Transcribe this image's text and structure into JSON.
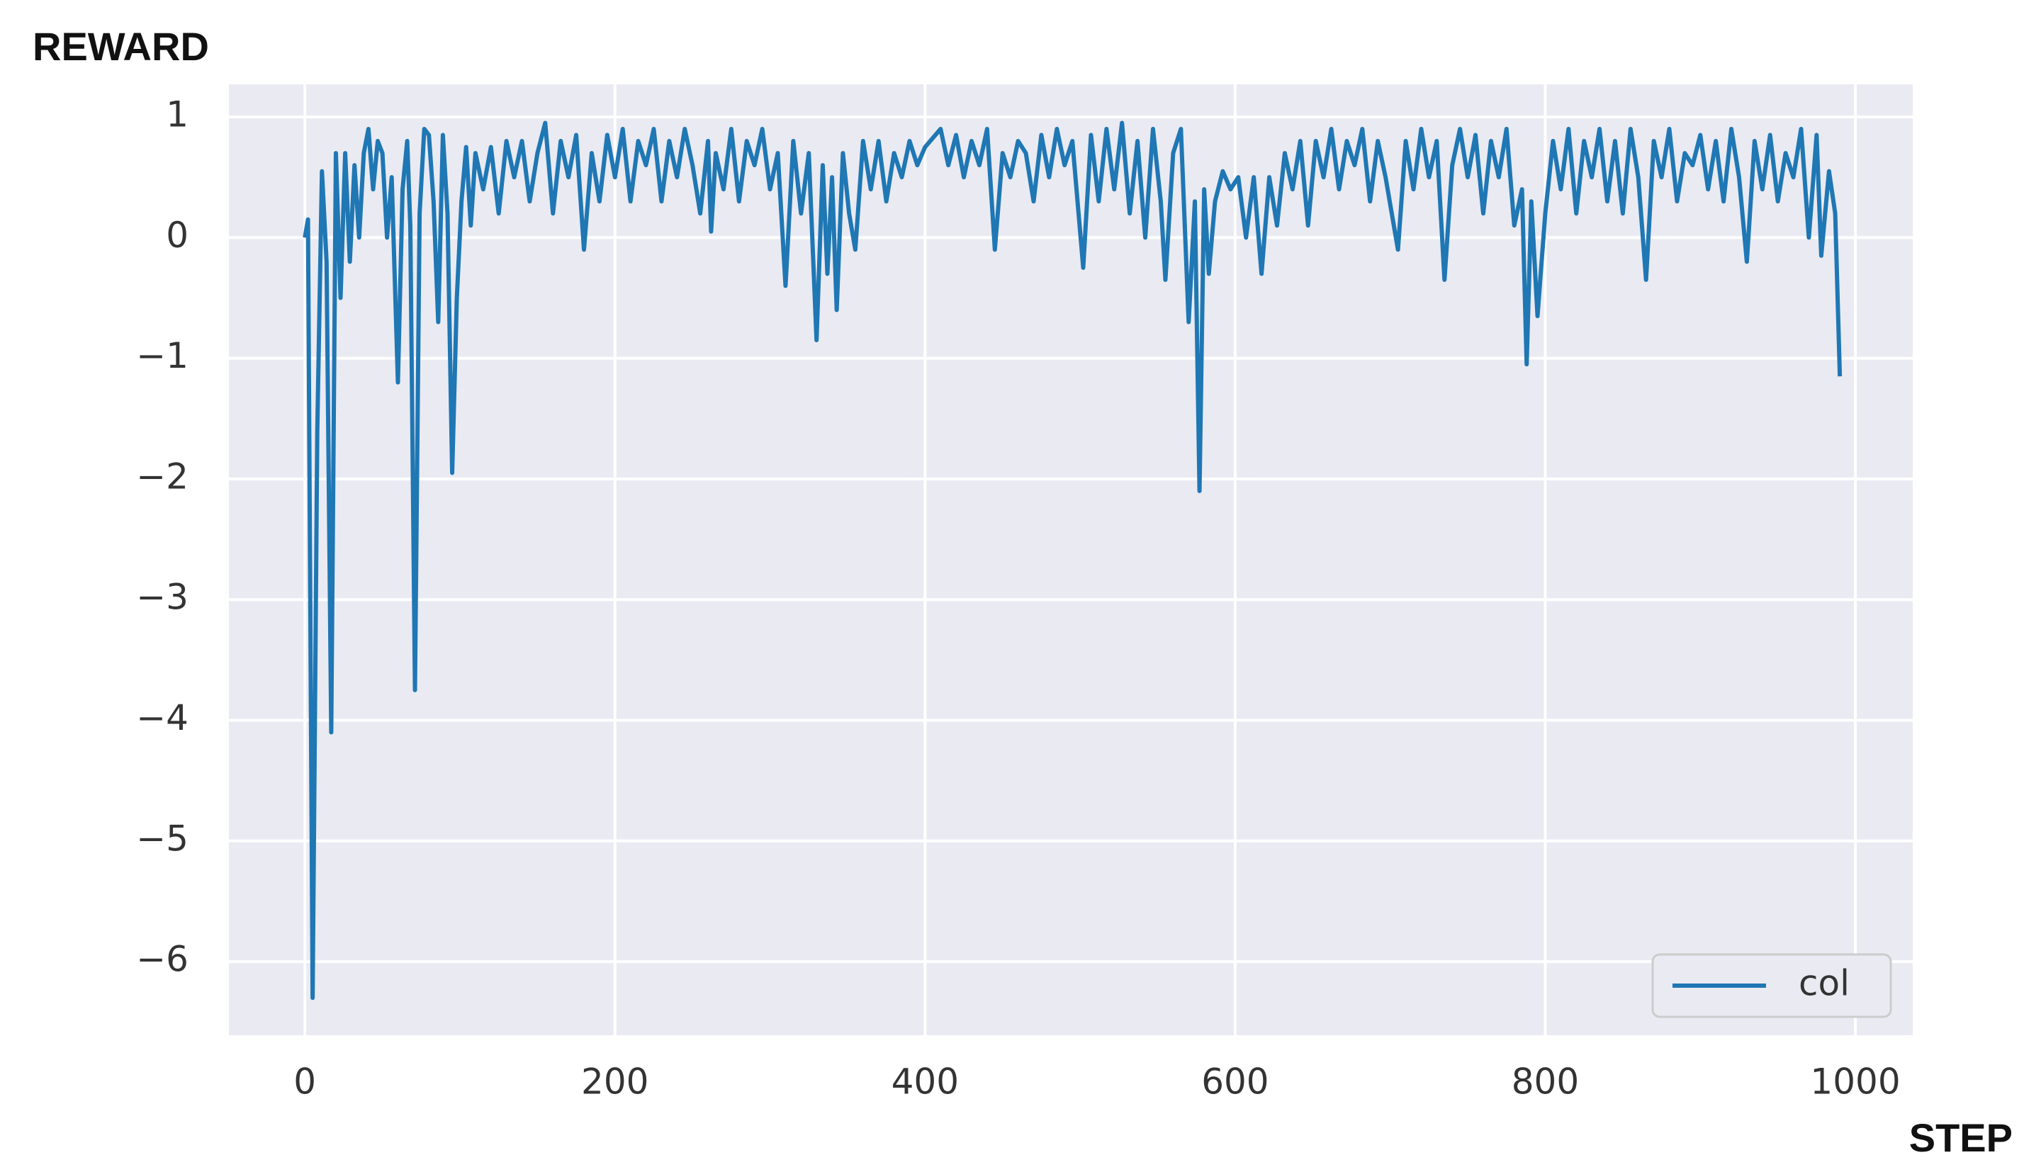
{
  "chart_data": {
    "type": "line",
    "y_label": "REWARD",
    "x_label": "STEP",
    "x": [
      0,
      2,
      5,
      8,
      11,
      14,
      17,
      20,
      23,
      26,
      29,
      32,
      35,
      38,
      41,
      44,
      47,
      50,
      53,
      56,
      60,
      63,
      66,
      68,
      71,
      74,
      77,
      80,
      83,
      86,
      89,
      92,
      95,
      98,
      101,
      104,
      107,
      110,
      115,
      120,
      125,
      130,
      135,
      140,
      145,
      150,
      155,
      160,
      165,
      170,
      175,
      180,
      185,
      190,
      195,
      200,
      205,
      210,
      215,
      220,
      225,
      230,
      235,
      240,
      245,
      250,
      255,
      260,
      262,
      265,
      270,
      275,
      280,
      285,
      290,
      295,
      300,
      305,
      310,
      315,
      320,
      325,
      330,
      334,
      337,
      340,
      343,
      347,
      351,
      355,
      360,
      365,
      370,
      375,
      380,
      385,
      390,
      395,
      400,
      410,
      415,
      420,
      425,
      430,
      435,
      440,
      445,
      450,
      455,
      460,
      465,
      470,
      475,
      480,
      485,
      490,
      495,
      502,
      507,
      512,
      517,
      522,
      527,
      532,
      537,
      542,
      547,
      552,
      555,
      560,
      565,
      570,
      574,
      577,
      580,
      583,
      587,
      592,
      597,
      602,
      607,
      612,
      617,
      622,
      627,
      632,
      637,
      642,
      647,
      652,
      657,
      662,
      667,
      672,
      677,
      682,
      687,
      692,
      697,
      705,
      710,
      715,
      720,
      725,
      730,
      735,
      740,
      745,
      750,
      755,
      760,
      765,
      770,
      775,
      780,
      785,
      788,
      791,
      795,
      800,
      805,
      810,
      815,
      820,
      825,
      830,
      835,
      840,
      845,
      850,
      855,
      860,
      865,
      870,
      875,
      880,
      885,
      890,
      895,
      900,
      905,
      910,
      915,
      920,
      925,
      930,
      935,
      940,
      945,
      950,
      955,
      960,
      965,
      970,
      975,
      978,
      983,
      987,
      990
    ],
    "series": [
      {
        "name": "col",
        "color": "#1f77b4",
        "values": [
          0,
          0.15,
          -6.3,
          -1.6,
          0.55,
          -0.2,
          -4.1,
          0.7,
          -0.5,
          0.7,
          -0.2,
          0.6,
          0.0,
          0.7,
          0.9,
          0.4,
          0.8,
          0.7,
          0.0,
          0.5,
          -1.2,
          0.4,
          0.8,
          0.1,
          -3.75,
          0.2,
          0.9,
          0.85,
          0.3,
          -0.7,
          0.85,
          0.2,
          -1.95,
          -0.5,
          0.3,
          0.75,
          0.1,
          0.7,
          0.4,
          0.75,
          0.2,
          0.8,
          0.5,
          0.8,
          0.3,
          0.7,
          0.95,
          0.2,
          0.8,
          0.5,
          0.85,
          -0.1,
          0.7,
          0.3,
          0.85,
          0.5,
          0.9,
          0.3,
          0.8,
          0.6,
          0.9,
          0.3,
          0.8,
          0.5,
          0.9,
          0.6,
          0.2,
          0.8,
          0.05,
          0.7,
          0.4,
          0.9,
          0.3,
          0.8,
          0.6,
          0.9,
          0.4,
          0.7,
          -0.4,
          0.8,
          0.2,
          0.7,
          -0.85,
          0.6,
          -0.3,
          0.5,
          -0.6,
          0.7,
          0.2,
          -0.1,
          0.8,
          0.4,
          0.8,
          0.3,
          0.7,
          0.5,
          0.8,
          0.6,
          0.75,
          0.9,
          0.6,
          0.85,
          0.5,
          0.8,
          0.6,
          0.9,
          -0.1,
          0.7,
          0.5,
          0.8,
          0.7,
          0.3,
          0.85,
          0.5,
          0.9,
          0.6,
          0.8,
          -0.25,
          0.85,
          0.3,
          0.9,
          0.4,
          0.95,
          0.2,
          0.8,
          0.0,
          0.9,
          0.3,
          -0.35,
          0.7,
          0.9,
          -0.7,
          0.3,
          -2.1,
          0.4,
          -0.3,
          0.3,
          0.55,
          0.4,
          0.5,
          0.0,
          0.5,
          -0.3,
          0.5,
          0.1,
          0.7,
          0.4,
          0.8,
          0.1,
          0.8,
          0.5,
          0.9,
          0.4,
          0.8,
          0.6,
          0.9,
          0.3,
          0.8,
          0.5,
          -0.1,
          0.8,
          0.4,
          0.9,
          0.5,
          0.8,
          -0.35,
          0.6,
          0.9,
          0.5,
          0.85,
          0.2,
          0.8,
          0.5,
          0.9,
          0.1,
          0.4,
          -1.05,
          0.3,
          -0.65,
          0.2,
          0.8,
          0.4,
          0.9,
          0.2,
          0.8,
          0.5,
          0.9,
          0.3,
          0.8,
          0.2,
          0.9,
          0.5,
          -0.35,
          0.8,
          0.5,
          0.9,
          0.3,
          0.7,
          0.6,
          0.85,
          0.4,
          0.8,
          0.3,
          0.9,
          0.5,
          -0.2,
          0.8,
          0.4,
          0.85,
          0.3,
          0.7,
          0.5,
          0.9,
          0.0,
          0.85,
          -0.15,
          0.55,
          0.2,
          -1.15
        ]
      }
    ],
    "xlim": [
      -49,
      1037
    ],
    "ylim": [
      -6.61,
      1.27
    ],
    "xticks": [
      0,
      200,
      400,
      600,
      800,
      1000
    ],
    "yticks": [
      1,
      0,
      {
        "value": -1,
        "label": "−1"
      },
      {
        "value": -2,
        "label": "−2"
      },
      {
        "value": -3,
        "label": "−3"
      },
      {
        "value": -4,
        "label": "−4"
      },
      {
        "value": -5,
        "label": "−5"
      },
      {
        "value": -6,
        "label": "−6"
      }
    ],
    "grid": true,
    "legend": "lower right"
  }
}
